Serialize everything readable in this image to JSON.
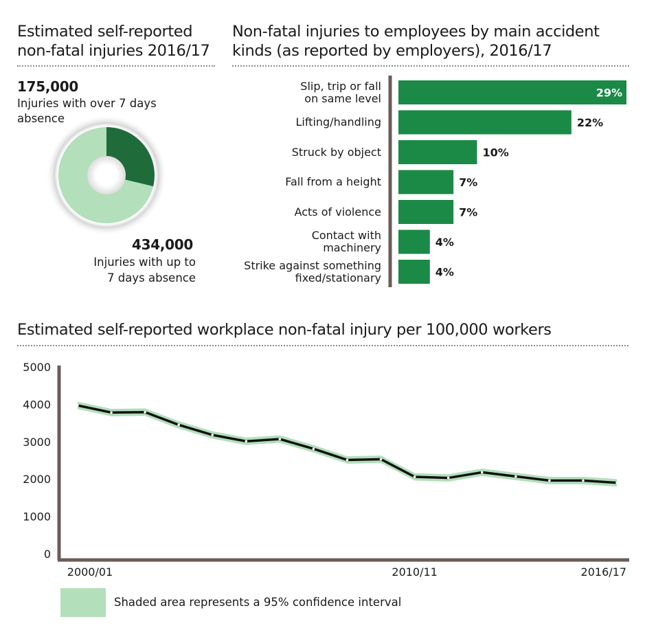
{
  "donut_panel": {
    "title_line1": "Estimated self-reported",
    "title_line2": "non-fatal injuries 2016/17",
    "stat_over7_value": "175,000",
    "stat_over7_label_line1": "Injuries with over 7 days",
    "stat_over7_label_line2": "absence",
    "stat_upto7_value": "434,000",
    "stat_upto7_label_line1": "Injuries with up to",
    "stat_upto7_label_line2": "7 days absence"
  },
  "bar_panel": {
    "title_line1": "Non-fatal injuries to employees by main accident",
    "title_line2": "kinds (as reported by employers), 2016/17"
  },
  "line_panel": {
    "title": "Estimated self-reported workplace non-fatal injury per 100,000 workers",
    "legend_text": "Shaded area represents a 95% confidence interval"
  },
  "colors": {
    "dark_green": "#1f6b3a",
    "light_green": "#b3dfbb",
    "bar_green": "#1b8a46",
    "axis": "#6b5c58",
    "line": "#111111"
  },
  "chart_data": [
    {
      "type": "pie",
      "variant": "donut",
      "categories": [
        "Injuries with over 7 days absence",
        "Injuries with up to 7 days absence"
      ],
      "values": [
        175000,
        434000
      ]
    },
    {
      "type": "bar",
      "orientation": "horizontal",
      "categories": [
        [
          "Slip, trip or fall",
          "on same level"
        ],
        [
          "Lifting/handling"
        ],
        [
          "Struck by object"
        ],
        [
          "Fall from a height"
        ],
        [
          "Acts of violence"
        ],
        [
          "Contact with",
          "machinery"
        ],
        [
          "Strike against something",
          "fixed/stationary"
        ]
      ],
      "values": [
        29,
        22,
        10,
        7,
        7,
        4,
        4
      ],
      "value_labels": [
        "29%",
        "22%",
        "10%",
        "7%",
        "7%",
        "4%",
        "4%"
      ],
      "xlim": [
        0,
        29
      ]
    },
    {
      "type": "line",
      "x": [
        "2000/01",
        "2001/02",
        "2002/03",
        "2003/04",
        "2004/05",
        "2005/06",
        "2006/07",
        "2007/08",
        "2008/09",
        "2009/10",
        "2010/11",
        "2011/12",
        "2012/13",
        "2013/14",
        "2014/15",
        "2015/16",
        "2016/17"
      ],
      "x_tick_labels": [
        "2000/01",
        "2010/11",
        "2016/17"
      ],
      "x_tick_values": [
        "2000/01",
        "2010/11",
        "2016/17"
      ],
      "series": [
        {
          "values": [
            4080,
            3890,
            3900,
            3560,
            3290,
            3120,
            3180,
            2920,
            2620,
            2640,
            2170,
            2140,
            2290,
            2180,
            2070,
            2070,
            2010
          ],
          "ci_half_width": 100
        }
      ],
      "ylim": [
        0,
        5000
      ],
      "y_ticks": [
        0,
        1000,
        2000,
        3000,
        4000,
        5000
      ],
      "grid": false
    }
  ]
}
